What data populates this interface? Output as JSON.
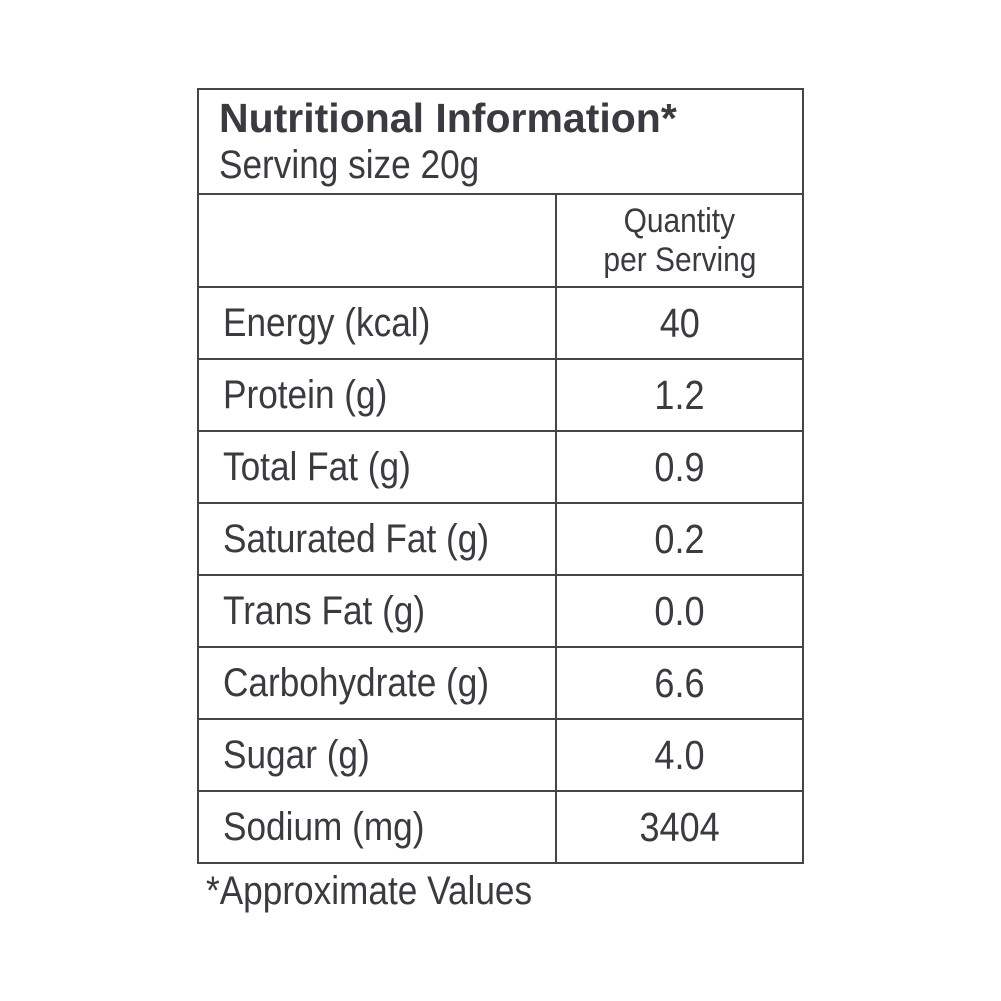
{
  "label": {
    "title": "Nutritional Information*",
    "serving_size": "Serving size 20g",
    "quantity_header_line1": "Quantity",
    "quantity_header_line2": "per Serving",
    "rows": [
      {
        "name": "Energy (kcal)",
        "value": "40"
      },
      {
        "name": "Protein (g)",
        "value": "1.2"
      },
      {
        "name": "Total Fat (g)",
        "value": "0.9"
      },
      {
        "name": "Saturated Fat (g)",
        "value": "0.2"
      },
      {
        "name": "Trans Fat (g)",
        "value": "0.0"
      },
      {
        "name": "Carbohydrate (g)",
        "value": "6.6"
      },
      {
        "name": "Sugar (g)",
        "value": "4.0"
      },
      {
        "name": "Sodium (mg)",
        "value": "3404"
      }
    ],
    "footnote": "*Approximate Values"
  },
  "colors": {
    "text": "#3b3a40",
    "border": "#454449",
    "background": "#ffffff"
  }
}
